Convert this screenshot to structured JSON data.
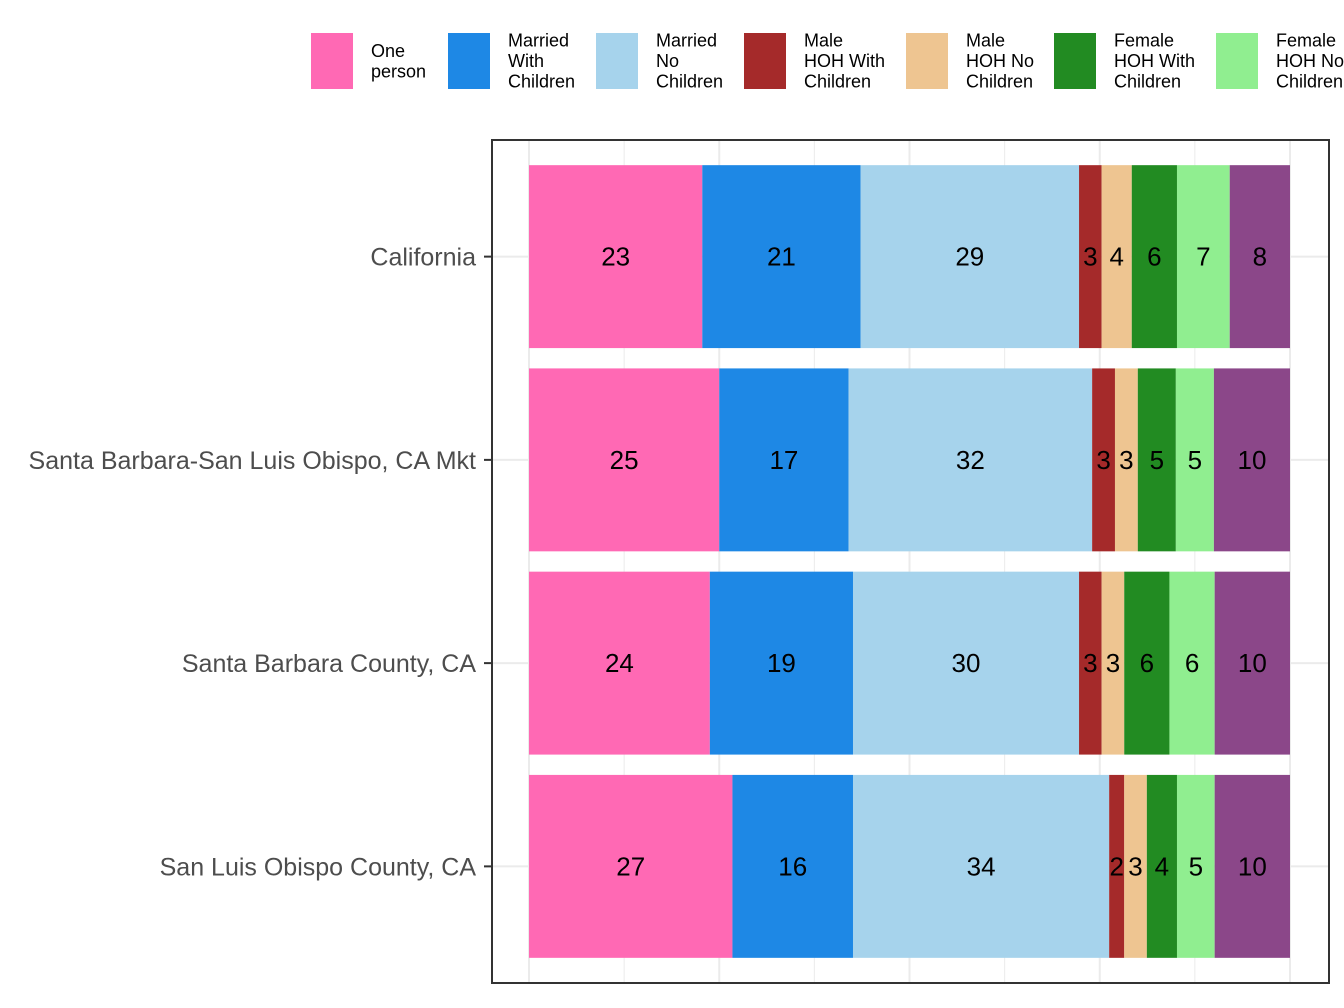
{
  "chart_data": {
    "type": "bar",
    "orientation": "horizontal",
    "stacked": true,
    "categories": [
      "California",
      "Santa Barbara-San Luis Obispo, CA Mkt",
      "Santa Barbara County, CA",
      "San Luis Obispo County, CA"
    ],
    "series": [
      {
        "name": "One person",
        "legend_lines": [
          "One",
          "person"
        ],
        "color": "#ff69b4",
        "values": [
          23,
          25,
          24,
          27
        ]
      },
      {
        "name": "Married With Children",
        "legend_lines": [
          "Married",
          "With",
          "Children"
        ],
        "color": "#1e88e5",
        "values": [
          21,
          17,
          19,
          16
        ]
      },
      {
        "name": "Married No Children",
        "legend_lines": [
          "Married",
          "No",
          "Children"
        ],
        "color": "#a6d3ec",
        "values": [
          29,
          32,
          30,
          34
        ]
      },
      {
        "name": "Male HOH With Children",
        "legend_lines": [
          "Male",
          "HOH With",
          "Children"
        ],
        "color": "#a52a2a",
        "values": [
          3,
          3,
          3,
          2
        ]
      },
      {
        "name": "Male HOH No Children",
        "legend_lines": [
          "Male",
          "HOH No",
          "Children"
        ],
        "color": "#eec591",
        "values": [
          4,
          3,
          3,
          3
        ]
      },
      {
        "name": "Female HOH With Children",
        "legend_lines": [
          "Female",
          "HOH With",
          "Children"
        ],
        "color": "#228b22",
        "values": [
          6,
          5,
          6,
          4
        ]
      },
      {
        "name": "Female HOH No Children",
        "legend_lines": [
          "Female",
          "HOH No",
          "Children"
        ],
        "color": "#90ee90",
        "values": [
          7,
          5,
          6,
          5
        ]
      },
      {
        "name": "",
        "legend_lines": [],
        "color": "#8b4789",
        "values": [
          8,
          10,
          10,
          10
        ]
      }
    ],
    "xlim": [
      0,
      100
    ],
    "grid": true,
    "legend_position": "top",
    "title": "",
    "xlabel": "",
    "ylabel": ""
  }
}
